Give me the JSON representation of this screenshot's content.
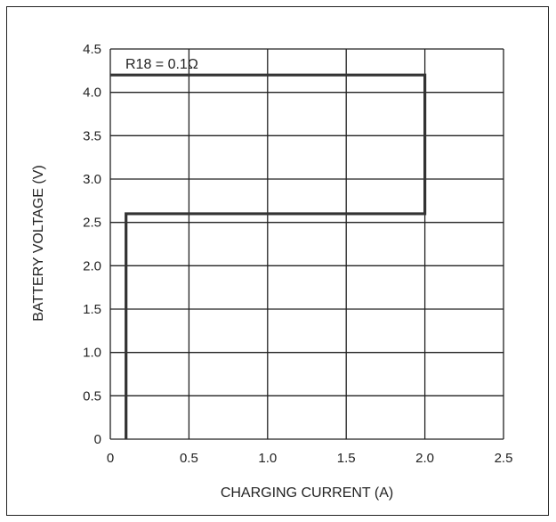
{
  "chart_data": {
    "type": "line",
    "title": "",
    "xlabel": "CHARGING CURRENT (A)",
    "ylabel": "BATTERY VOLTAGE (V)",
    "xlim": [
      0,
      2.5
    ],
    "ylim": [
      0,
      4.5
    ],
    "x_ticks": [
      0,
      0.5,
      1.0,
      1.5,
      2.0,
      2.5
    ],
    "x_tick_labels": [
      "0",
      "0.5",
      "1.0",
      "1.5",
      "2.0",
      "2.5"
    ],
    "y_ticks": [
      0,
      0.5,
      1.0,
      1.5,
      2.0,
      2.5,
      3.0,
      3.5,
      4.0,
      4.5
    ],
    "y_tick_labels": [
      "0",
      "0.5",
      "1.0",
      "1.5",
      "2.0",
      "2.5",
      "3.0",
      "3.5",
      "4.0",
      "4.5"
    ],
    "grid": true,
    "annotation": "R18 = 0.1Ω",
    "series": [
      {
        "x": [
          0.1,
          0.1,
          2.0,
          2.0,
          0.0
        ],
        "y": [
          0.0,
          2.6,
          2.6,
          4.2,
          4.2
        ]
      }
    ],
    "colors": {
      "line": "#333333",
      "grid": "#222222",
      "text": "#222222"
    }
  }
}
